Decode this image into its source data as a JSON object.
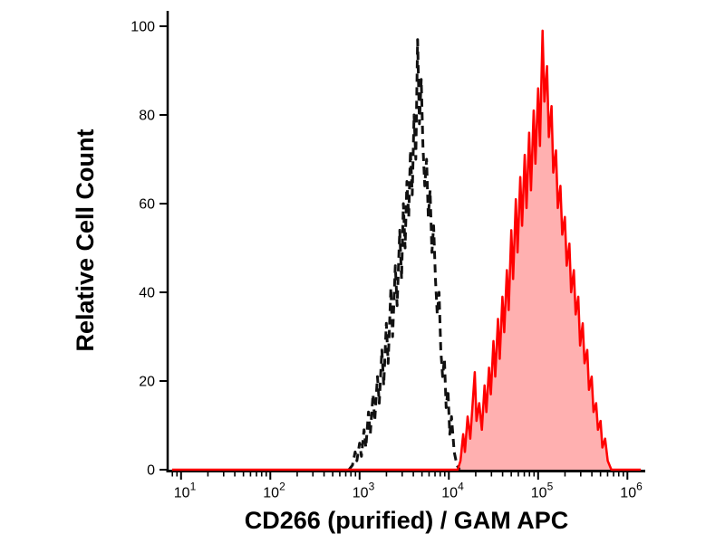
{
  "page": {
    "background": "#ffffff"
  },
  "chart_data": {
    "type": "area",
    "chart_kind": "flow-cytometry-overlay-histogram",
    "title": "",
    "xlabel": "CD266 (purified) / GAM APC",
    "ylabel": "Relative Cell Count",
    "x_scale": "log10",
    "x_tick_base": "10",
    "x_tick_exponents": [
      1,
      2,
      3,
      4,
      5,
      6
    ],
    "y_ticks": [
      0,
      20,
      40,
      60,
      80,
      100
    ],
    "xlim_log10": [
      0.85,
      6.2
    ],
    "ylim": [
      0,
      104
    ],
    "grid": false,
    "legend": null,
    "axis_color": "#000000",
    "series": [
      {
        "name": "black-dashed-histogram",
        "color": "#111111",
        "line_style": "dashed",
        "line_width": 3,
        "fill": "none",
        "points_log10x_y": [
          [
            2.88,
            0
          ],
          [
            2.92,
            1
          ],
          [
            2.95,
            4
          ],
          [
            2.97,
            2
          ],
          [
            3.0,
            6
          ],
          [
            3.02,
            3
          ],
          [
            3.05,
            9
          ],
          [
            3.07,
            5
          ],
          [
            3.1,
            13
          ],
          [
            3.12,
            8
          ],
          [
            3.15,
            17
          ],
          [
            3.17,
            11
          ],
          [
            3.2,
            21
          ],
          [
            3.22,
            15
          ],
          [
            3.25,
            27
          ],
          [
            3.27,
            19
          ],
          [
            3.3,
            33
          ],
          [
            3.32,
            24
          ],
          [
            3.35,
            41
          ],
          [
            3.37,
            30
          ],
          [
            3.4,
            46
          ],
          [
            3.42,
            37
          ],
          [
            3.45,
            54
          ],
          [
            3.47,
            43
          ],
          [
            3.49,
            60
          ],
          [
            3.51,
            50
          ],
          [
            3.53,
            65
          ],
          [
            3.55,
            57
          ],
          [
            3.57,
            72
          ],
          [
            3.59,
            62
          ],
          [
            3.61,
            80
          ],
          [
            3.63,
            70
          ],
          [
            3.65,
            97
          ],
          [
            3.67,
            78
          ],
          [
            3.69,
            88
          ],
          [
            3.71,
            73
          ],
          [
            3.73,
            64
          ],
          [
            3.75,
            70
          ],
          [
            3.77,
            57
          ],
          [
            3.79,
            63
          ],
          [
            3.81,
            49
          ],
          [
            3.83,
            55
          ],
          [
            3.85,
            43
          ],
          [
            3.87,
            35
          ],
          [
            3.89,
            40
          ],
          [
            3.91,
            27
          ],
          [
            3.93,
            21
          ],
          [
            3.95,
            25
          ],
          [
            3.97,
            14
          ],
          [
            3.99,
            18
          ],
          [
            4.01,
            8
          ],
          [
            4.03,
            12
          ],
          [
            4.06,
            4
          ],
          [
            4.09,
            1
          ],
          [
            4.12,
            0
          ]
        ]
      },
      {
        "name": "red-filled-histogram",
        "color": "#ff0000",
        "line_style": "solid",
        "line_width": 2.5,
        "fill": "#ffb0b0",
        "points_log10x_y": [
          [
            0.9,
            0
          ],
          [
            4.1,
            0
          ],
          [
            4.13,
            2
          ],
          [
            4.16,
            8
          ],
          [
            4.18,
            4
          ],
          [
            4.21,
            12
          ],
          [
            4.24,
            7
          ],
          [
            4.27,
            16
          ],
          [
            4.29,
            22
          ],
          [
            4.31,
            11
          ],
          [
            4.34,
            15
          ],
          [
            4.37,
            9
          ],
          [
            4.4,
            19
          ],
          [
            4.42,
            13
          ],
          [
            4.45,
            23
          ],
          [
            4.47,
            17
          ],
          [
            4.5,
            29
          ],
          [
            4.52,
            21
          ],
          [
            4.55,
            34
          ],
          [
            4.57,
            25
          ],
          [
            4.6,
            39
          ],
          [
            4.62,
            31
          ],
          [
            4.65,
            45
          ],
          [
            4.67,
            36
          ],
          [
            4.7,
            54
          ],
          [
            4.72,
            43
          ],
          [
            4.75,
            61
          ],
          [
            4.77,
            49
          ],
          [
            4.8,
            66
          ],
          [
            4.82,
            55
          ],
          [
            4.85,
            71
          ],
          [
            4.87,
            59
          ],
          [
            4.9,
            76
          ],
          [
            4.92,
            63
          ],
          [
            4.95,
            81
          ],
          [
            4.97,
            69
          ],
          [
            5.0,
            86
          ],
          [
            5.02,
            73
          ],
          [
            5.05,
            99
          ],
          [
            5.07,
            83
          ],
          [
            5.1,
            91
          ],
          [
            5.12,
            75
          ],
          [
            5.15,
            82
          ],
          [
            5.17,
            67
          ],
          [
            5.2,
            72
          ],
          [
            5.22,
            59
          ],
          [
            5.25,
            64
          ],
          [
            5.27,
            53
          ],
          [
            5.3,
            57
          ],
          [
            5.32,
            46
          ],
          [
            5.35,
            51
          ],
          [
            5.37,
            40
          ],
          [
            5.4,
            45
          ],
          [
            5.42,
            35
          ],
          [
            5.45,
            39
          ],
          [
            5.47,
            28
          ],
          [
            5.5,
            33
          ],
          [
            5.52,
            24
          ],
          [
            5.55,
            27
          ],
          [
            5.57,
            18
          ],
          [
            5.6,
            21
          ],
          [
            5.62,
            13
          ],
          [
            5.65,
            15
          ],
          [
            5.67,
            9
          ],
          [
            5.7,
            11
          ],
          [
            5.72,
            5
          ],
          [
            5.75,
            7
          ],
          [
            5.78,
            2
          ],
          [
            5.82,
            0
          ],
          [
            6.15,
            0
          ]
        ]
      }
    ]
  }
}
